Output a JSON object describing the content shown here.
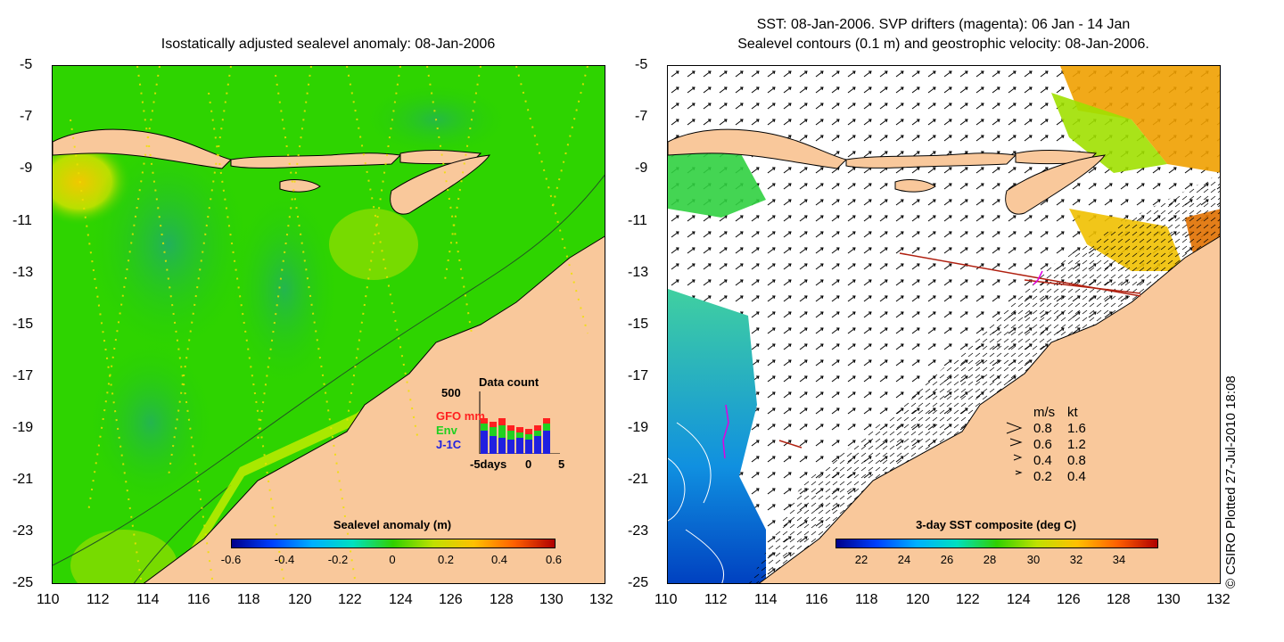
{
  "left_map": {
    "title": "Isostatically adjusted sealevel anomaly: 08-Jan-2006",
    "y_ticks": [
      "-5",
      "-7",
      "-9",
      "-11",
      "-13",
      "-15",
      "-17",
      "-19",
      "-21",
      "-23",
      "-25"
    ],
    "x_ticks": [
      "110",
      "112",
      "114",
      "116",
      "118",
      "120",
      "122",
      "124",
      "126",
      "128",
      "130",
      "132"
    ],
    "colorbar": {
      "title": "Sealevel anomaly (m)",
      "ticks": [
        "-0.6",
        "-0.4",
        "-0.2",
        "0",
        "0.2",
        "0.4",
        "0.6"
      ]
    },
    "data_count": {
      "title": "Data count",
      "max_label": "500",
      "x_ticks": [
        "-5days",
        "0",
        "5"
      ],
      "legend": [
        {
          "label": "GFO mm",
          "color": "#ff2020"
        },
        {
          "label": "Env",
          "color": "#20d020"
        },
        {
          "label": "J-1C",
          "color": "#2020e0"
        }
      ]
    }
  },
  "right_map": {
    "title_line1": "SST: 08-Jan-2006. SVP drifters (magenta): 06 Jan - 14 Jan",
    "title_line2": "Sealevel contours (0.1 m) and geostrophic velocity: 08-Jan-2006.",
    "y_ticks": [
      "-5",
      "-7",
      "-9",
      "-11",
      "-13",
      "-15",
      "-17",
      "-19",
      "-21",
      "-23",
      "-25"
    ],
    "x_ticks": [
      "110",
      "112",
      "114",
      "116",
      "118",
      "120",
      "122",
      "124",
      "126",
      "128",
      "130",
      "132"
    ],
    "colorbar": {
      "title": "3-day SST composite (deg C)",
      "ticks": [
        "22",
        "24",
        "26",
        "28",
        "30",
        "32",
        "34"
      ]
    },
    "velocity_legend": {
      "header_ms": "m/s",
      "header_kt": "kt",
      "rows": [
        {
          "ms": "0.8",
          "kt": "1.6"
        },
        {
          "ms": "0.6",
          "kt": "1.2"
        },
        {
          "ms": "0.4",
          "kt": "0.8"
        },
        {
          "ms": "0.2",
          "kt": "0.4"
        }
      ]
    }
  },
  "credit": "© CSIRO Plotted 27-Jul-2010 18:08",
  "colors": {
    "land": "#f9c89b",
    "ocean_left": "#22d000",
    "ocean_right_white": "#ffffff"
  }
}
